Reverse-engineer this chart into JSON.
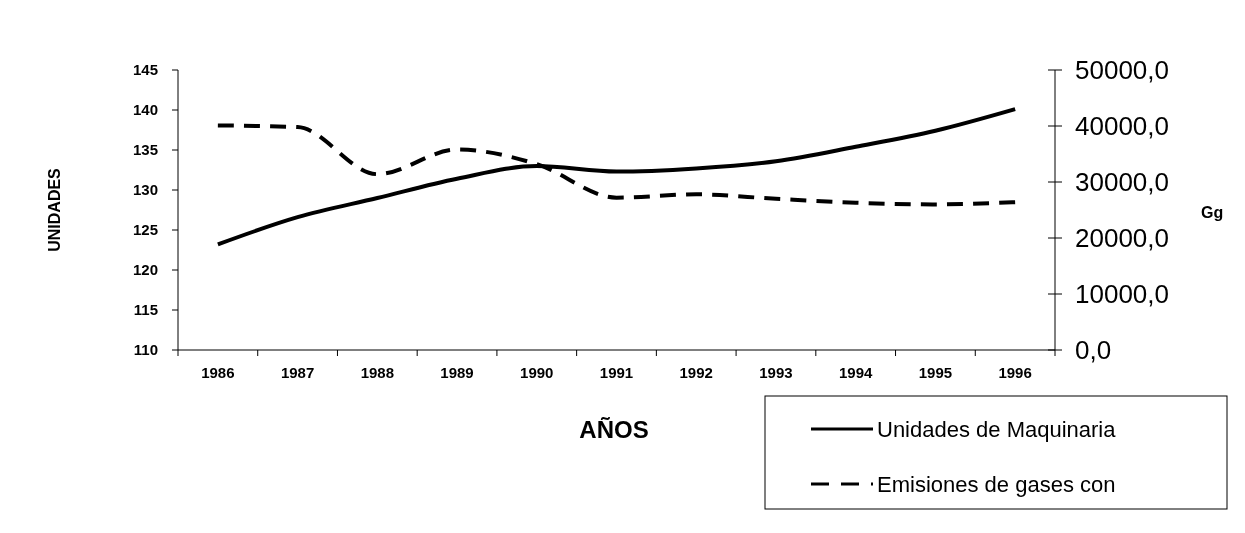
{
  "chart_data": {
    "type": "line",
    "xlabel": "AÑOS",
    "ylabel": "UNIDADES",
    "y2label": "Gg",
    "categories": [
      "1986",
      "1987",
      "1988",
      "1989",
      "1990",
      "1991",
      "1992",
      "1993",
      "1994",
      "1995",
      "1996"
    ],
    "series": [
      {
        "name": "Unidades de Maquinaria",
        "color": "#000000",
        "line_style": "solid",
        "values": [
          123.2,
          126.6,
          129,
          131.4,
          133,
          132.3,
          132.7,
          133.6,
          135.4,
          137.4,
          140.1
        ]
      },
      {
        "name": "Emisiones de gases con",
        "color": "#000000",
        "line_style": "dashed",
        "axis": "y2",
        "values": [
          40100,
          39800,
          31400,
          35800,
          33200,
          27200,
          27800,
          27000,
          26300,
          26000,
          26400
        ]
      }
    ],
    "ylim": [
      110,
      145
    ],
    "yticks": [
      110,
      115,
      120,
      125,
      130,
      135,
      140,
      145
    ],
    "y2lim": [
      0,
      50000
    ],
    "y2ticks": [
      {
        "value": 0,
        "label": "0,0"
      },
      {
        "value": 10000,
        "label": "10000,0"
      },
      {
        "value": 20000,
        "label": "20000,0"
      },
      {
        "value": 30000,
        "label": "30000,0"
      },
      {
        "value": 40000,
        "label": "40000,0"
      },
      {
        "value": 50000,
        "label": "50000,0"
      }
    ],
    "grid": false,
    "legend": "bottom right",
    "marker": "none"
  }
}
